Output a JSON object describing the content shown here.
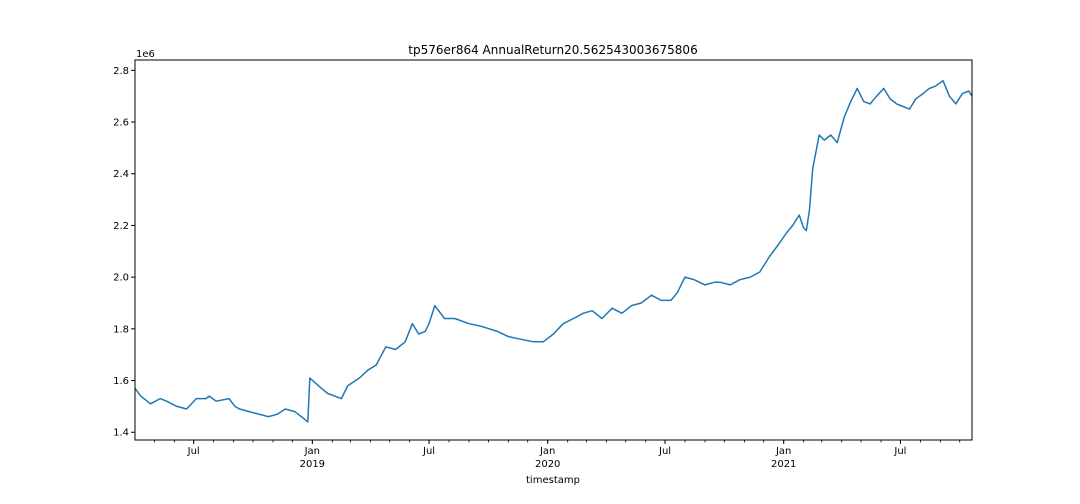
{
  "chart_data": {
    "type": "line",
    "title": "tp576er864 AnnualReturn20.562543003675806",
    "xlabel": "timestamp",
    "ylabel": "",
    "y_scale_label": "1e6",
    "xlim": [
      "2018-04-01",
      "2021-10-20"
    ],
    "ylim": [
      1.37,
      2.84
    ],
    "y_ticks": [
      {
        "value": 1.4,
        "label": "1.4"
      },
      {
        "value": 1.6,
        "label": "1.6"
      },
      {
        "value": 1.8,
        "label": "1.8"
      },
      {
        "value": 2.0,
        "label": "2.0"
      },
      {
        "value": 2.2,
        "label": "2.2"
      },
      {
        "value": 2.4,
        "label": "2.4"
      },
      {
        "value": 2.6,
        "label": "2.6"
      },
      {
        "value": 2.8,
        "label": "2.8"
      }
    ],
    "x_ticks": [
      {
        "date": "2018-07-01",
        "label": "Jul",
        "sublabel": ""
      },
      {
        "date": "2019-01-01",
        "label": "Jan",
        "sublabel": "2019"
      },
      {
        "date": "2019-07-01",
        "label": "Jul",
        "sublabel": ""
      },
      {
        "date": "2020-01-01",
        "label": "Jan",
        "sublabel": "2020"
      },
      {
        "date": "2020-07-01",
        "label": "Jul",
        "sublabel": ""
      },
      {
        "date": "2021-01-01",
        "label": "Jan",
        "sublabel": "2021"
      },
      {
        "date": "2021-07-01",
        "label": "Jul",
        "sublabel": ""
      }
    ],
    "line_color": "#1f77b4",
    "grid": false,
    "series": [
      {
        "x": [
          "2018-04-01",
          "2018-04-10",
          "2018-04-25",
          "2018-05-10",
          "2018-05-20",
          "2018-06-05",
          "2018-06-20",
          "2018-07-05",
          "2018-07-20",
          "2018-07-25",
          "2018-08-05",
          "2018-08-25",
          "2018-09-03",
          "2018-09-10",
          "2018-09-25",
          "2018-10-10",
          "2018-10-25",
          "2018-11-08",
          "2018-11-20",
          "2018-12-05",
          "2018-12-20",
          "2018-12-25",
          "2018-12-28",
          "2019-01-15",
          "2019-01-25",
          "2019-02-15",
          "2019-02-25",
          "2019-03-15",
          "2019-03-28",
          "2019-04-10",
          "2019-04-25",
          "2019-05-10",
          "2019-05-25",
          "2019-06-05",
          "2019-06-15",
          "2019-06-25",
          "2019-07-01",
          "2019-07-10",
          "2019-07-25",
          "2019-08-10",
          "2019-09-01",
          "2019-09-20",
          "2019-10-15",
          "2019-11-01",
          "2019-11-20",
          "2019-12-10",
          "2019-12-25",
          "2020-01-10",
          "2020-01-25",
          "2020-02-10",
          "2020-02-25",
          "2020-03-10",
          "2020-03-25",
          "2020-04-10",
          "2020-04-25",
          "2020-05-10",
          "2020-05-25",
          "2020-06-10",
          "2020-06-25",
          "2020-07-10",
          "2020-07-20",
          "2020-08-01",
          "2020-08-15",
          "2020-09-01",
          "2020-09-15",
          "2020-09-25",
          "2020-10-10",
          "2020-10-25",
          "2020-11-10",
          "2020-11-25",
          "2020-12-10",
          "2020-12-25",
          "2021-01-05",
          "2021-01-15",
          "2021-01-25",
          "2021-02-01",
          "2021-02-05",
          "2021-02-10",
          "2021-02-15",
          "2021-02-25",
          "2021-03-05",
          "2021-03-15",
          "2021-03-25",
          "2021-04-05",
          "2021-04-15",
          "2021-04-25",
          "2021-05-05",
          "2021-05-15",
          "2021-05-25",
          "2021-06-05",
          "2021-06-15",
          "2021-06-25",
          "2021-07-05",
          "2021-07-15",
          "2021-07-25",
          "2021-08-05",
          "2021-08-15",
          "2021-08-25",
          "2021-09-05",
          "2021-09-15",
          "2021-09-25",
          "2021-10-05",
          "2021-10-15",
          "2021-10-20"
        ],
        "y": [
          1.57,
          1.54,
          1.51,
          1.53,
          1.52,
          1.5,
          1.49,
          1.53,
          1.53,
          1.54,
          1.52,
          1.53,
          1.5,
          1.49,
          1.48,
          1.47,
          1.46,
          1.47,
          1.49,
          1.48,
          1.45,
          1.44,
          1.61,
          1.57,
          1.55,
          1.53,
          1.58,
          1.61,
          1.64,
          1.66,
          1.73,
          1.72,
          1.75,
          1.82,
          1.78,
          1.79,
          1.82,
          1.89,
          1.84,
          1.84,
          1.82,
          1.81,
          1.79,
          1.77,
          1.76,
          1.75,
          1.75,
          1.78,
          1.82,
          1.84,
          1.86,
          1.87,
          1.84,
          1.88,
          1.86,
          1.89,
          1.9,
          1.93,
          1.91,
          1.91,
          1.94,
          2.0,
          1.99,
          1.97,
          1.98,
          1.98,
          1.97,
          1.99,
          2.0,
          2.02,
          2.08,
          2.13,
          2.17,
          2.2,
          2.24,
          2.19,
          2.18,
          2.26,
          2.42,
          2.55,
          2.53,
          2.55,
          2.52,
          2.62,
          2.68,
          2.73,
          2.68,
          2.67,
          2.7,
          2.73,
          2.69,
          2.67,
          2.66,
          2.65,
          2.69,
          2.71,
          2.73,
          2.74,
          2.76,
          2.7,
          2.67,
          2.71,
          2.72,
          2.7
        ]
      }
    ]
  }
}
